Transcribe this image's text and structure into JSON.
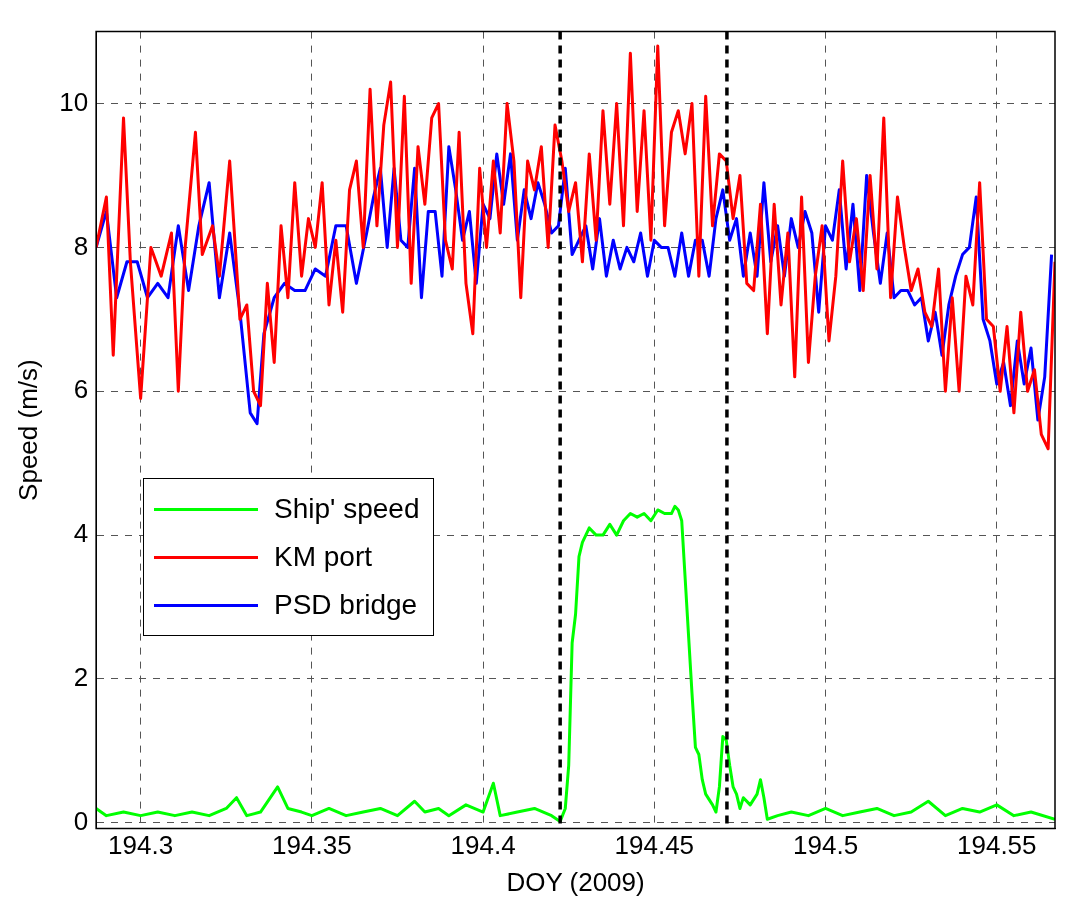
{
  "chart_data": {
    "type": "line",
    "xlabel": "DOY (2009)",
    "ylabel": "Speed (m/s)",
    "xlim": [
      194.287,
      194.567
    ],
    "ylim": [
      -0.08,
      11
    ],
    "xticks": [
      194.3,
      194.35,
      194.4,
      194.45,
      194.5,
      194.55
    ],
    "yticks": [
      0,
      2,
      4,
      6,
      8,
      10
    ],
    "grid": true,
    "legend": "left",
    "ref_lines": [
      {
        "axis": "x",
        "value": 194.4225,
        "color": "#000000",
        "line_style": "dashed"
      },
      {
        "axis": "x",
        "value": 194.4712,
        "color": "#000000",
        "line_style": "dashed"
      }
    ],
    "series": [
      {
        "name": "Ship' speed",
        "color": "#00ff00",
        "x": [
          194.287,
          194.29,
          194.295,
          194.3,
          194.305,
          194.31,
          194.315,
          194.32,
          194.325,
          194.328,
          194.331,
          194.335,
          194.34,
          194.343,
          194.347,
          194.35,
          194.355,
          194.36,
          194.365,
          194.37,
          194.375,
          194.38,
          194.383,
          194.387,
          194.39,
          194.395,
          194.4,
          194.403,
          194.405,
          194.41,
          194.415,
          194.42,
          194.4225,
          194.424,
          194.425,
          194.426,
          194.427,
          194.428,
          194.429,
          194.431,
          194.433,
          194.435,
          194.437,
          194.439,
          194.441,
          194.443,
          194.445,
          194.447,
          194.449,
          194.451,
          194.453,
          194.455,
          194.456,
          194.457,
          194.458,
          194.459,
          194.46,
          194.461,
          194.462,
          194.463,
          194.464,
          194.465,
          194.467,
          194.468,
          194.469,
          194.47,
          194.471,
          194.472,
          194.473,
          194.474,
          194.475,
          194.476,
          194.478,
          194.48,
          194.481,
          194.482,
          194.483,
          194.486,
          194.49,
          194.495,
          194.5,
          194.505,
          194.51,
          194.515,
          194.52,
          194.525,
          194.53,
          194.535,
          194.54,
          194.545,
          194.55,
          194.555,
          194.56,
          194.567
        ],
        "values": [
          0.2,
          0.1,
          0.15,
          0.1,
          0.15,
          0.1,
          0.15,
          0.1,
          0.2,
          0.35,
          0.1,
          0.15,
          0.5,
          0.2,
          0.15,
          0.1,
          0.2,
          0.1,
          0.15,
          0.2,
          0.1,
          0.3,
          0.15,
          0.2,
          0.1,
          0.25,
          0.15,
          0.55,
          0.1,
          0.15,
          0.2,
          0.1,
          0.02,
          0.2,
          0.8,
          2.5,
          2.9,
          3.7,
          3.9,
          4.1,
          4.0,
          4.0,
          4.15,
          4.0,
          4.2,
          4.3,
          4.25,
          4.3,
          4.2,
          4.35,
          4.3,
          4.3,
          4.4,
          4.35,
          4.2,
          3.4,
          2.6,
          1.8,
          1.05,
          0.95,
          0.6,
          0.4,
          0.25,
          0.15,
          0.5,
          1.2,
          1.15,
          0.8,
          0.5,
          0.4,
          0.2,
          0.35,
          0.25,
          0.4,
          0.6,
          0.35,
          0.05,
          0.1,
          0.15,
          0.1,
          0.2,
          0.1,
          0.15,
          0.2,
          0.1,
          0.15,
          0.3,
          0.1,
          0.2,
          0.15,
          0.25,
          0.1,
          0.15,
          0.05
        ]
      },
      {
        "name": "KM port",
        "color": "#ff0000",
        "x": [
          194.287,
          194.29,
          194.292,
          194.295,
          194.297,
          194.3,
          194.303,
          194.306,
          194.309,
          194.311,
          194.313,
          194.316,
          194.318,
          194.321,
          194.323,
          194.326,
          194.329,
          194.331,
          194.333,
          194.335,
          194.337,
          194.339,
          194.341,
          194.343,
          194.345,
          194.347,
          194.349,
          194.351,
          194.353,
          194.355,
          194.357,
          194.359,
          194.361,
          194.363,
          194.365,
          194.367,
          194.369,
          194.371,
          194.373,
          194.375,
          194.377,
          194.379,
          194.381,
          194.383,
          194.385,
          194.387,
          194.389,
          194.391,
          194.393,
          194.395,
          194.397,
          194.399,
          194.401,
          194.403,
          194.405,
          194.407,
          194.409,
          194.411,
          194.413,
          194.415,
          194.417,
          194.419,
          194.421,
          194.423,
          194.425,
          194.427,
          194.429,
          194.431,
          194.433,
          194.435,
          194.437,
          194.439,
          194.441,
          194.443,
          194.445,
          194.447,
          194.449,
          194.451,
          194.453,
          194.455,
          194.457,
          194.459,
          194.461,
          194.463,
          194.465,
          194.467,
          194.469,
          194.471,
          194.473,
          194.475,
          194.477,
          194.479,
          194.481,
          194.483,
          194.485,
          194.487,
          194.489,
          194.491,
          194.493,
          194.495,
          194.497,
          194.499,
          194.501,
          194.503,
          194.505,
          194.507,
          194.509,
          194.511,
          194.513,
          194.515,
          194.517,
          194.519,
          194.521,
          194.523,
          194.525,
          194.527,
          194.529,
          194.531,
          194.533,
          194.535,
          194.537,
          194.539,
          194.541,
          194.543,
          194.545,
          194.547,
          194.549,
          194.551,
          194.553,
          194.555,
          194.557,
          194.559,
          194.561,
          194.563,
          194.565,
          194.567
        ],
        "values": [
          8.0,
          8.7,
          6.5,
          9.8,
          7.8,
          5.9,
          8.0,
          7.6,
          8.2,
          6.0,
          8.0,
          9.6,
          7.9,
          8.3,
          7.6,
          9.2,
          7.0,
          7.2,
          6.0,
          5.8,
          7.5,
          6.4,
          8.3,
          7.3,
          8.9,
          7.6,
          8.4,
          8.0,
          8.9,
          7.2,
          8.1,
          7.1,
          8.8,
          9.2,
          8.0,
          10.2,
          8.3,
          9.7,
          10.3,
          8.0,
          10.1,
          7.5,
          9.4,
          8.6,
          9.8,
          10.0,
          8.1,
          7.7,
          9.6,
          7.5,
          6.8,
          9.1,
          8.0,
          9.2,
          8.2,
          10.0,
          9.2,
          7.3,
          9.2,
          8.8,
          9.4,
          8.0,
          9.7,
          9.2,
          8.5,
          8.9,
          7.8,
          9.3,
          8.1,
          9.9,
          8.6,
          10.0,
          8.3,
          10.7,
          8.5,
          9.9,
          8.1,
          10.8,
          8.3,
          9.6,
          9.9,
          9.3,
          10.0,
          7.6,
          10.1,
          8.3,
          9.3,
          9.2,
          8.4,
          9.0,
          7.5,
          7.4,
          8.6,
          6.8,
          8.6,
          7.2,
          8.2,
          6.2,
          8.7,
          6.4,
          7.6,
          8.3,
          6.7,
          7.6,
          9.2,
          7.8,
          8.4,
          7.4,
          9.0,
          7.7,
          9.8,
          7.3,
          8.7,
          8.0,
          7.4,
          7.7,
          7.1,
          6.9,
          7.7,
          6.0,
          7.3,
          6.0,
          7.6,
          7.2,
          8.9,
          7.0,
          6.9,
          6.0,
          6.9,
          5.7,
          7.1,
          6.0,
          6.3,
          5.4,
          5.2,
          7.8
        ]
      },
      {
        "name": "PSD bridge",
        "color": "#0000ff",
        "x": [
          194.287,
          194.29,
          194.293,
          194.296,
          194.299,
          194.302,
          194.305,
          194.308,
          194.311,
          194.314,
          194.317,
          194.32,
          194.323,
          194.326,
          194.329,
          194.332,
          194.334,
          194.336,
          194.339,
          194.342,
          194.345,
          194.348,
          194.351,
          194.354,
          194.357,
          194.36,
          194.363,
          194.366,
          194.368,
          194.37,
          194.372,
          194.374,
          194.376,
          194.378,
          194.38,
          194.382,
          194.384,
          194.386,
          194.388,
          194.39,
          194.392,
          194.394,
          194.396,
          194.398,
          194.4,
          194.402,
          194.404,
          194.406,
          194.408,
          194.41,
          194.412,
          194.414,
          194.416,
          194.418,
          194.42,
          194.422,
          194.424,
          194.426,
          194.428,
          194.43,
          194.432,
          194.434,
          194.436,
          194.438,
          194.44,
          194.442,
          194.444,
          194.446,
          194.448,
          194.45,
          194.452,
          194.454,
          194.456,
          194.458,
          194.46,
          194.462,
          194.464,
          194.466,
          194.468,
          194.47,
          194.472,
          194.474,
          194.476,
          194.478,
          194.48,
          194.482,
          194.484,
          194.486,
          194.488,
          194.49,
          194.492,
          194.494,
          194.496,
          194.498,
          194.5,
          194.502,
          194.504,
          194.506,
          194.508,
          194.51,
          194.512,
          194.514,
          194.516,
          194.518,
          194.52,
          194.522,
          194.524,
          194.526,
          194.528,
          194.53,
          194.532,
          194.534,
          194.536,
          194.538,
          194.54,
          194.542,
          194.544,
          194.546,
          194.548,
          194.55,
          194.552,
          194.554,
          194.556,
          194.558,
          194.56,
          194.562,
          194.564,
          194.566
        ],
        "values": [
          8.0,
          8.5,
          7.3,
          7.8,
          7.8,
          7.3,
          7.5,
          7.3,
          8.3,
          7.4,
          8.3,
          8.9,
          7.3,
          8.2,
          7.1,
          5.7,
          5.55,
          6.8,
          7.3,
          7.5,
          7.4,
          7.4,
          7.7,
          7.6,
          8.3,
          8.3,
          7.5,
          8.2,
          8.7,
          9.1,
          8.0,
          9.1,
          8.1,
          8.0,
          9.1,
          7.3,
          8.5,
          8.5,
          7.6,
          9.4,
          8.8,
          8.1,
          8.5,
          7.5,
          8.6,
          8.4,
          9.3,
          8.6,
          9.3,
          8.1,
          8.8,
          8.4,
          8.9,
          8.6,
          8.2,
          8.3,
          9.1,
          7.9,
          8.1,
          8.3,
          7.7,
          8.4,
          7.6,
          8.1,
          7.7,
          8.0,
          7.8,
          8.2,
          7.6,
          8.1,
          8.0,
          8.0,
          7.6,
          8.2,
          7.6,
          8.1,
          8.1,
          7.6,
          8.4,
          8.8,
          8.1,
          8.4,
          7.6,
          8.2,
          7.6,
          8.9,
          7.8,
          8.3,
          7.6,
          8.4,
          8.0,
          8.5,
          8.2,
          7.1,
          8.3,
          8.1,
          8.8,
          7.7,
          8.6,
          7.4,
          9.0,
          8.2,
          7.5,
          8.2,
          7.3,
          7.4,
          7.4,
          7.2,
          7.3,
          6.7,
          7.1,
          6.5,
          7.2,
          7.6,
          7.9,
          8.0,
          8.7,
          7.0,
          6.7,
          6.1,
          6.4,
          5.8,
          6.7,
          6.1,
          6.6,
          5.6,
          6.2,
          7.9
        ]
      }
    ]
  }
}
